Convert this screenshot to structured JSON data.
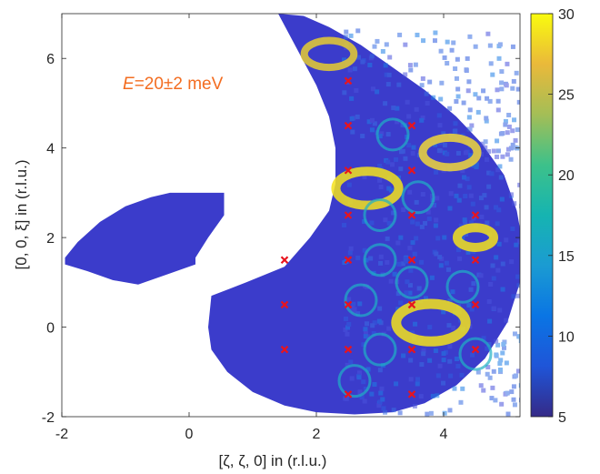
{
  "chart_data": {
    "type": "heatmap",
    "title": "",
    "xlabel": "[ζ, ζ, 0] in (r.l.u.)",
    "ylabel": "[0, 0, ξ] in (r.l.u.)",
    "xlim": [
      -2,
      5.2
    ],
    "ylim": [
      -2,
      7
    ],
    "x_ticks": [
      -2,
      0,
      2,
      4
    ],
    "y_ticks": [
      -2,
      0,
      2,
      4,
      6
    ],
    "x_tick_labels": [
      "-2",
      "0",
      "2",
      "4"
    ],
    "y_tick_labels": [
      "-2",
      "0",
      "2",
      "4",
      "6"
    ],
    "annotation": {
      "text_italic": "E",
      "text_rest": "=20±2 meV",
      "x": -0.9,
      "y": 5.4,
      "color": "#f36d21"
    },
    "colorbar": {
      "min": 5,
      "max": 30,
      "ticks": [
        5,
        10,
        15,
        20,
        25,
        30
      ],
      "tick_labels": [
        "5",
        "10",
        "15",
        "20",
        "25",
        "30"
      ],
      "colormap": "parula"
    },
    "markers": {
      "symbol": "x",
      "color": "#e8141e",
      "points": [
        [
          2.5,
          5.5
        ],
        [
          2.5,
          4.5
        ],
        [
          3.5,
          4.5
        ],
        [
          2.5,
          3.5
        ],
        [
          3.5,
          3.5
        ],
        [
          2.5,
          2.5
        ],
        [
          3.5,
          2.5
        ],
        [
          4.5,
          2.5
        ],
        [
          1.5,
          1.5
        ],
        [
          2.5,
          1.5
        ],
        [
          3.5,
          1.5
        ],
        [
          4.5,
          1.5
        ],
        [
          1.5,
          0.5
        ],
        [
          2.5,
          0.5
        ],
        [
          3.5,
          0.5
        ],
        [
          4.5,
          0.5
        ],
        [
          1.5,
          -0.5
        ],
        [
          2.5,
          -0.5
        ],
        [
          3.5,
          -0.5
        ],
        [
          4.5,
          -0.5
        ],
        [
          2.5,
          -1.5
        ],
        [
          3.5,
          -1.5
        ]
      ]
    },
    "grid": false
  }
}
